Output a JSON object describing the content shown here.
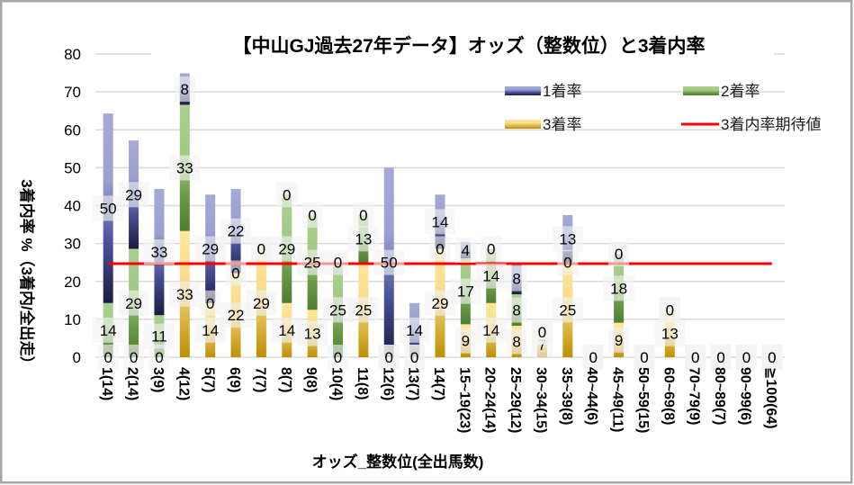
{
  "chart_data": {
    "type": "bar",
    "stacked": true,
    "title": "【中山GJ過去27年データ】オッズ（整数位）と3着内率",
    "xlabel": "オッズ_整数位(全出馬数)",
    "ylabel": "3着内率 %（3着内/全出走）",
    "ylim": [
      0,
      80
    ],
    "yticks": [
      0,
      10,
      20,
      30,
      40,
      50,
      60,
      70,
      80
    ],
    "grid": true,
    "legend": {
      "position": "top-right",
      "entries": [
        "1着率",
        "2着率",
        "3着率",
        "3着内率期待値"
      ]
    },
    "categories": [
      "1(14)",
      "2(14)",
      "3(9)",
      "4(12)",
      "5(7)",
      "6(9)",
      "7(7)",
      "8(7)",
      "9(8)",
      "10(4)",
      "11(8)",
      "12(6)",
      "13(7)",
      "14(7)",
      "15~19(23)",
      "20~24(14)",
      "25~29(12)",
      "30~34(15)",
      "35~39(8)",
      "40~44(6)",
      "45~49(11)",
      "50~59(15)",
      "60~69(8)",
      "70~79(9)",
      "80~89(7)",
      "90~99(6)",
      "≧100(64)"
    ],
    "series": [
      {
        "name": "3着率",
        "key": "gold",
        "color": "#bf9000",
        "values": [
          0,
          0,
          0,
          33.3,
          14.3,
          22.2,
          28.6,
          14.3,
          12.5,
          0,
          25.0,
          0,
          0,
          28.6,
          8.7,
          14.3,
          8.3,
          6.7,
          25.0,
          0,
          9.1,
          0,
          12.5,
          0,
          0,
          0,
          0
        ],
        "labels": [
          "0",
          "0",
          "0",
          "33",
          "14",
          "22",
          "29",
          "14",
          "13",
          "0",
          "25",
          "0",
          "0",
          "29",
          "9",
          "14",
          "8",
          "7",
          "25",
          "0",
          "9",
          "0",
          "13",
          "0",
          "0",
          "0",
          "0"
        ]
      },
      {
        "name": "2着率",
        "key": "green",
        "color": "#70ad47",
        "values": [
          14.3,
          28.6,
          11.1,
          33.3,
          0,
          0,
          0,
          28.6,
          25.0,
          25.0,
          12.5,
          0,
          0,
          0,
          17.4,
          14.3,
          8.3,
          0,
          0,
          0,
          18.2,
          0,
          0,
          0,
          0,
          0,
          0
        ],
        "labels": [
          "14",
          "29",
          "11",
          "33",
          "0",
          "0",
          "0",
          "29",
          "25",
          "25",
          "13",
          "0",
          "0",
          "0",
          "17",
          "14",
          "8",
          "0",
          "0",
          "0",
          "18",
          "0",
          "0",
          "0",
          "0",
          "0",
          "0"
        ]
      },
      {
        "name": "1着率",
        "key": "blue",
        "color": "#4a5199",
        "values": [
          50.0,
          28.6,
          33.3,
          8.3,
          28.6,
          22.2,
          0,
          0,
          0,
          0,
          0,
          50.0,
          14.3,
          14.3,
          4.3,
          0,
          8.3,
          0,
          12.5,
          0,
          0,
          0,
          0,
          0,
          0,
          0,
          0
        ],
        "labels": [
          "50",
          "29",
          "33",
          "8",
          "29",
          "22",
          "0",
          "0",
          "0",
          "0",
          "0",
          "50",
          "14",
          "14",
          "4",
          "0",
          "8",
          "0",
          "13",
          "0",
          "0",
          "0",
          "0",
          "0",
          "0",
          "0",
          "0"
        ]
      }
    ],
    "reference_line": {
      "name": "3着内率期待値",
      "value": 24.7,
      "color": "#ff0000"
    }
  }
}
